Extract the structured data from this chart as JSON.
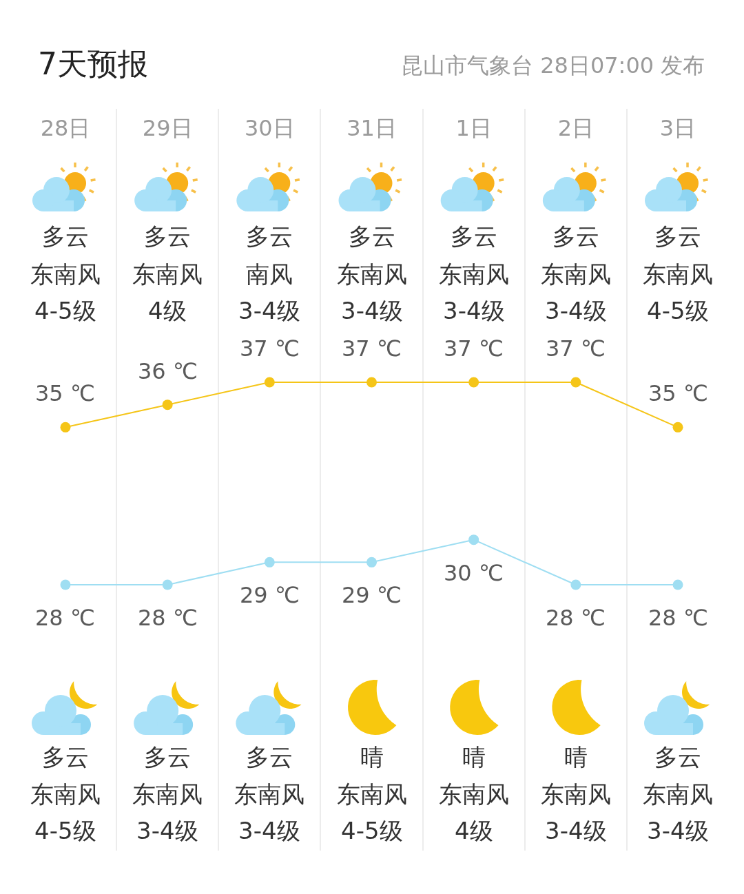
{
  "chart_data": {
    "type": "line",
    "title": "7天预报",
    "subtitle": "昆山市气象台 28日07:00 发布",
    "categories": [
      "28日",
      "29日",
      "30日",
      "31日",
      "1日",
      "2日",
      "3日"
    ],
    "series": [
      {
        "color": "#f5c518",
        "values": [
          35,
          36,
          37,
          37,
          37,
          37,
          35
        ],
        "value_labels": [
          "35 ℃",
          "36 ℃",
          "37 ℃",
          "37 ℃",
          "37 ℃",
          "37 ℃",
          "35 ℃"
        ]
      },
      {
        "color": "#9fdef2",
        "values": [
          28,
          28,
          29,
          29,
          30,
          28,
          28
        ],
        "value_labels": [
          "28 ℃",
          "28 ℃",
          "29 ℃",
          "29 ℃",
          "30 ℃",
          "28 ℃",
          "28 ℃"
        ]
      }
    ],
    "marker": "circle",
    "line_style": "solid",
    "grid": "x",
    "tick_labels": "x",
    "annotations": [
      "多云",
      "东南风",
      "4-5级",
      "多云",
      "东南风",
      "4级",
      "多云",
      "南风",
      "3-4级",
      "多云",
      "东南风",
      "3-4级",
      "多云",
      "东南风",
      "3-4级",
      "多云",
      "东南风",
      "3-4级",
      "多云",
      "东南风",
      "4-5级",
      "多云",
      "东南风",
      "4-5级",
      "多云",
      "东南风",
      "3-4级",
      "多云",
      "东南风",
      "3-4级",
      "晴",
      "东南风",
      "4-5级",
      "晴",
      "东南风",
      "4级",
      "晴",
      "东南风",
      "3-4级",
      "多云",
      "东南风",
      "3-4级"
    ]
  }
}
